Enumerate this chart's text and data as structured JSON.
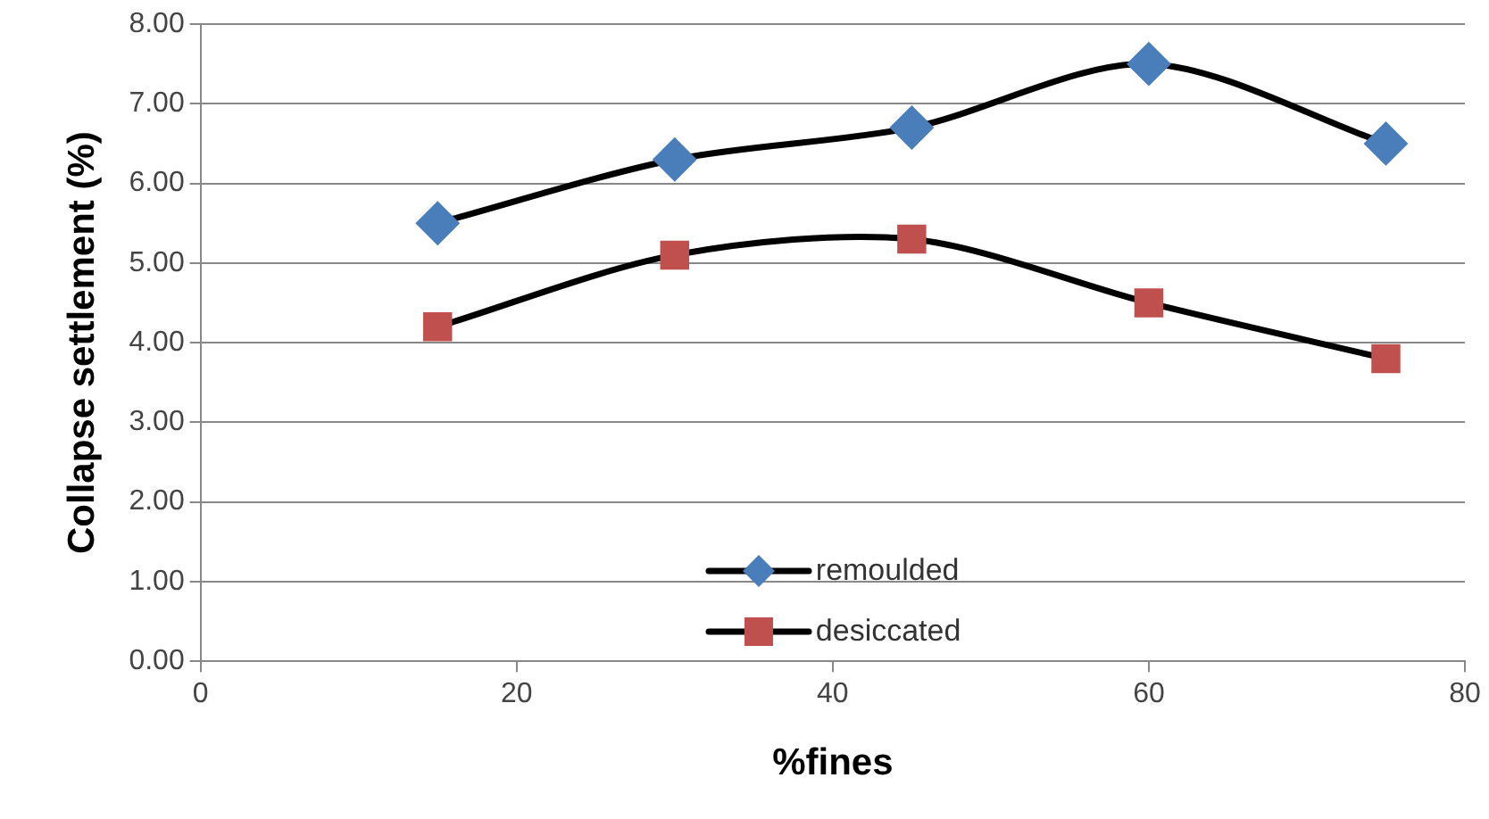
{
  "chart_data": {
    "type": "line",
    "xlabel": "%fines",
    "ylabel": "Collapse settlement (%)",
    "x": [
      15,
      30,
      45,
      60,
      75
    ],
    "series": [
      {
        "name": "remoulded",
        "color": "#000000",
        "colors": [
          "#4a7ebb",
          "#4a7ebb",
          "#4a7ebb",
          "#4a7ebb",
          "#4a7ebb"
        ],
        "marker": "diamond",
        "values": [
          5.5,
          6.3,
          6.7,
          7.5,
          6.5
        ]
      },
      {
        "name": "desiccated",
        "color": "#000000",
        "colors": [
          "#c0504d",
          "#c0504d",
          "#c0504d",
          "#c0504d",
          "#c0504d"
        ],
        "marker": "square",
        "values": [
          4.2,
          5.1,
          5.3,
          4.5,
          3.8
        ]
      }
    ],
    "xlim": [
      0,
      80
    ],
    "xticks": [
      0,
      20,
      40,
      60,
      80
    ],
    "ylim": [
      0,
      8
    ],
    "yticks": [
      {
        "value": 0,
        "label": "0.00"
      },
      {
        "value": 1,
        "label": "1.00"
      },
      {
        "value": 2,
        "label": "2.00"
      },
      {
        "value": 3,
        "label": "3.00"
      },
      {
        "value": 4,
        "label": "4.00"
      },
      {
        "value": 5,
        "label": "5.00"
      },
      {
        "value": 6,
        "label": "6.00"
      },
      {
        "value": 7,
        "label": "7.00"
      },
      {
        "value": 8,
        "label": "8.00"
      }
    ],
    "grid": "y",
    "legend": "bottom"
  }
}
